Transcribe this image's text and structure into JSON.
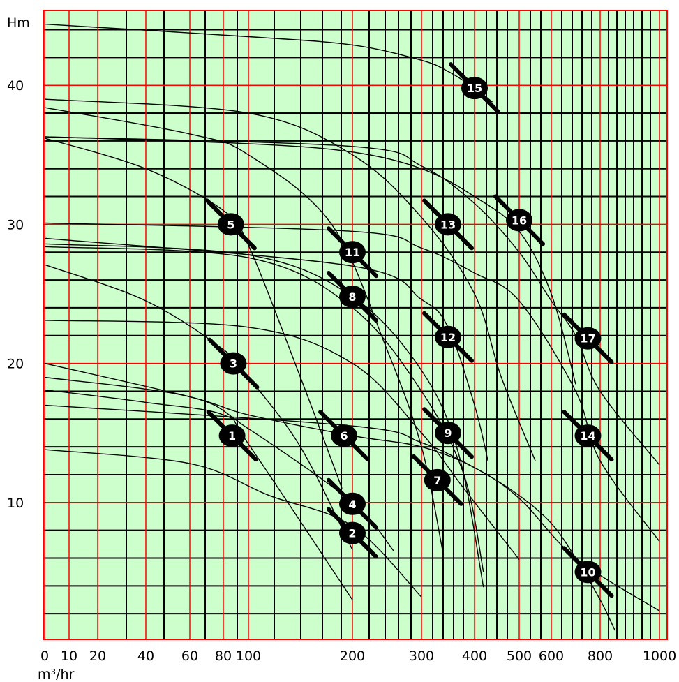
{
  "chart_data": {
    "type": "line",
    "title": "",
    "xlabel": "m³/hr",
    "ylabel": "Hm",
    "x_scale": "piecewise-log",
    "x_tick_labels": [
      "0",
      "10",
      "20",
      "40",
      "60",
      "80",
      "100",
      "200",
      "300",
      "400",
      "500",
      "600",
      "800",
      "1000"
    ],
    "y_tick_labels": [
      "10",
      "20",
      "30",
      "40"
    ],
    "ylim": [
      0,
      45
    ],
    "colors": {
      "background": "#ccffcc",
      "major_grid": "#ff0000",
      "minor_grid": "#000000",
      "curve": "#000000",
      "badge": "#000000",
      "badge_text": "#ffffff"
    },
    "curves": [
      {
        "label": "1",
        "points": [
          [
            0,
            18.1
          ],
          [
            40,
            17.2
          ],
          [
            80,
            16.3
          ],
          [
            100,
            14.2
          ],
          [
            200,
            3.0
          ]
        ],
        "badge": [
          87,
          14.8
        ]
      },
      {
        "label": "2",
        "points": [
          [
            0,
            13.8
          ],
          [
            60,
            12.8
          ],
          [
            120,
            10.5
          ],
          [
            200,
            8.3
          ],
          [
            300,
            3.2
          ]
        ],
        "badge": [
          200,
          7.8
        ]
      },
      {
        "label": "3",
        "points": [
          [
            0,
            27.1
          ],
          [
            40,
            24.5
          ],
          [
            80,
            21.0
          ],
          [
            100,
            19.0
          ],
          [
            150,
            14.0
          ],
          [
            200,
            6.6
          ]
        ],
        "badge": [
          88,
          20.0
        ]
      },
      {
        "label": "4",
        "points": [
          [
            0,
            19.0
          ],
          [
            60,
            17.6
          ],
          [
            100,
            15.3
          ],
          [
            200,
            10.0
          ],
          [
            260,
            6.5
          ]
        ],
        "badge": [
          200,
          9.9
        ]
      },
      {
        "label": "5",
        "points": [
          [
            0,
            36.2
          ],
          [
            40,
            34.0
          ],
          [
            80,
            31.0
          ],
          [
            100,
            28.5
          ],
          [
            150,
            19.0
          ],
          [
            190,
            11.0
          ]
        ],
        "badge": [
          86,
          30.0
        ]
      },
      {
        "label": "6",
        "points": [
          [
            0,
            20.0
          ],
          [
            60,
            17.6
          ],
          [
            100,
            16.3
          ],
          [
            200,
            14.8
          ],
          [
            300,
            14.0
          ],
          [
            400,
            12.5
          ],
          [
            500,
            10.3
          ],
          [
            700,
            6.0
          ],
          [
            1000,
            2.2
          ]
        ],
        "badge": [
          192,
          14.8
        ]
      },
      {
        "label": "7",
        "points": [
          [
            0,
            23.1
          ],
          [
            100,
            22.6
          ],
          [
            200,
            20.0
          ],
          [
            300,
            15.0
          ],
          [
            380,
            11.0
          ],
          [
            500,
            5.9
          ]
        ],
        "badge": [
          330,
          11.6
        ]
      },
      {
        "label": "8",
        "points": [
          [
            0,
            28.6
          ],
          [
            100,
            27.8
          ],
          [
            200,
            24.8
          ],
          [
            300,
            19.5
          ],
          [
            370,
            13.5
          ],
          [
            420,
            3.9
          ]
        ],
        "badge": [
          200,
          24.8
        ]
      },
      {
        "label": "9",
        "points": [
          [
            0,
            28.4
          ],
          [
            100,
            27.6
          ],
          [
            200,
            24.0
          ],
          [
            300,
            18.0
          ],
          [
            380,
            12.0
          ],
          [
            420,
            5.0
          ]
        ],
        "badge": [
          350,
          15.0
        ]
      },
      {
        "label": "10",
        "points": [
          [
            0,
            17.0
          ],
          [
            200,
            15.5
          ],
          [
            300,
            14.3
          ],
          [
            400,
            12.5
          ],
          [
            500,
            10.5
          ],
          [
            600,
            8.5
          ],
          [
            700,
            6.0
          ],
          [
            800,
            3.0
          ],
          [
            850,
            0.8
          ]
        ],
        "badge": [
          750,
          5.0
        ]
      },
      {
        "label": "11",
        "points": [
          [
            0,
            38.4
          ],
          [
            60,
            36.5
          ],
          [
            100,
            35.0
          ],
          [
            180,
            30.0
          ],
          [
            250,
            21.0
          ],
          [
            300,
            14.0
          ],
          [
            340,
            6.5
          ]
        ],
        "badge": [
          200,
          28.0
        ]
      },
      {
        "label": "12",
        "points": [
          [
            0,
            29.0
          ],
          [
            200,
            27.0
          ],
          [
            300,
            24.6
          ],
          [
            350,
            22.6
          ],
          [
            400,
            17.0
          ],
          [
            430,
            13.0
          ]
        ],
        "badge": [
          350,
          21.9
        ]
      },
      {
        "label": "13",
        "points": [
          [
            0,
            39.0
          ],
          [
            100,
            38.0
          ],
          [
            200,
            35.0
          ],
          [
            300,
            30.5
          ],
          [
            400,
            25.0
          ],
          [
            460,
            19.0
          ],
          [
            550,
            13.0
          ]
        ],
        "badge": [
          350,
          30.0
        ]
      },
      {
        "label": "14",
        "points": [
          [
            0,
            30.1
          ],
          [
            200,
            29.5
          ],
          [
            300,
            28.3
          ],
          [
            400,
            26.5
          ],
          [
            500,
            24.5
          ],
          [
            700,
            18.0
          ],
          [
            800,
            13.0
          ],
          [
            1000,
            7.2
          ]
        ],
        "badge": [
          750,
          14.8
        ]
      },
      {
        "label": "15",
        "points": [
          [
            0,
            44.4
          ],
          [
            100,
            43.5
          ],
          [
            200,
            42.9
          ],
          [
            300,
            41.8
          ],
          [
            350,
            41.0
          ],
          [
            400,
            39.8
          ],
          [
            440,
            38.8
          ]
        ],
        "badge": [
          400,
          39.8
        ]
      },
      {
        "label": "16",
        "points": [
          [
            0,
            36.3
          ],
          [
            100,
            35.8
          ],
          [
            200,
            35.2
          ],
          [
            300,
            34.0
          ],
          [
            400,
            32.0
          ],
          [
            500,
            29.5
          ],
          [
            600,
            25.0
          ],
          [
            700,
            18.5
          ]
        ],
        "badge": [
          500,
          30.3
        ]
      },
      {
        "label": "17",
        "points": [
          [
            0,
            36.3
          ],
          [
            200,
            35.6
          ],
          [
            300,
            34.2
          ],
          [
            400,
            31.5
          ],
          [
            500,
            28.0
          ],
          [
            600,
            24.5
          ],
          [
            700,
            22.0
          ],
          [
            800,
            18.0
          ],
          [
            1000,
            12.7
          ]
        ],
        "badge": [
          750,
          21.8
        ]
      }
    ]
  }
}
